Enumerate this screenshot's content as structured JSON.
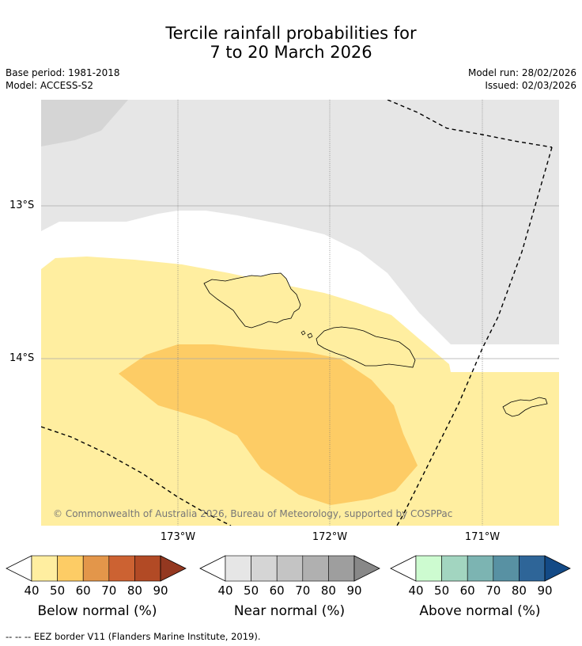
{
  "header": {
    "title_line1": "Tercile rainfall probabilities for",
    "title_line2": "7 to 20 March 2026",
    "base_period": "Base period: 1981-2018",
    "model": "Model: ACCESS-S2",
    "model_run": "Model run: 28/02/2026",
    "issued": "Issued: 02/03/2026"
  },
  "map": {
    "lon_labels": [
      "173°W",
      "172°W",
      "171°W"
    ],
    "lat_labels": [
      "13°S",
      "14°S"
    ],
    "copyright": "© Commonwealth of Australia 2026, Bureau of Meteorology, supported by COSPPac"
  },
  "colorbars": [
    {
      "title": "Below normal (%)",
      "ticks": [
        "40",
        "50",
        "60",
        "70",
        "80",
        "90"
      ],
      "colors": [
        "#ffffff",
        "#ffeea0",
        "#fdcc65",
        "#e3964a",
        "#cc6232",
        "#b24a25",
        "#943820"
      ]
    },
    {
      "title": "Near normal (%)",
      "ticks": [
        "40",
        "50",
        "60",
        "70",
        "80",
        "90"
      ],
      "colors": [
        "#ffffff",
        "#e6e6e6",
        "#d5d5d5",
        "#c4c4c4",
        "#b0b0b0",
        "#9e9e9e",
        "#888888"
      ]
    },
    {
      "title": "Above normal (%)",
      "ticks": [
        "40",
        "50",
        "60",
        "70",
        "80",
        "90"
      ],
      "colors": [
        "#ffffff",
        "#cdfbd0",
        "#a2d5c0",
        "#7cb4b2",
        "#5891a3",
        "#2e6598",
        "#134a86"
      ]
    }
  ],
  "footer": {
    "line_symbol": "-- -- --",
    "text": "EEZ border V11 (Flanders Marine Institute, 2019)."
  }
}
